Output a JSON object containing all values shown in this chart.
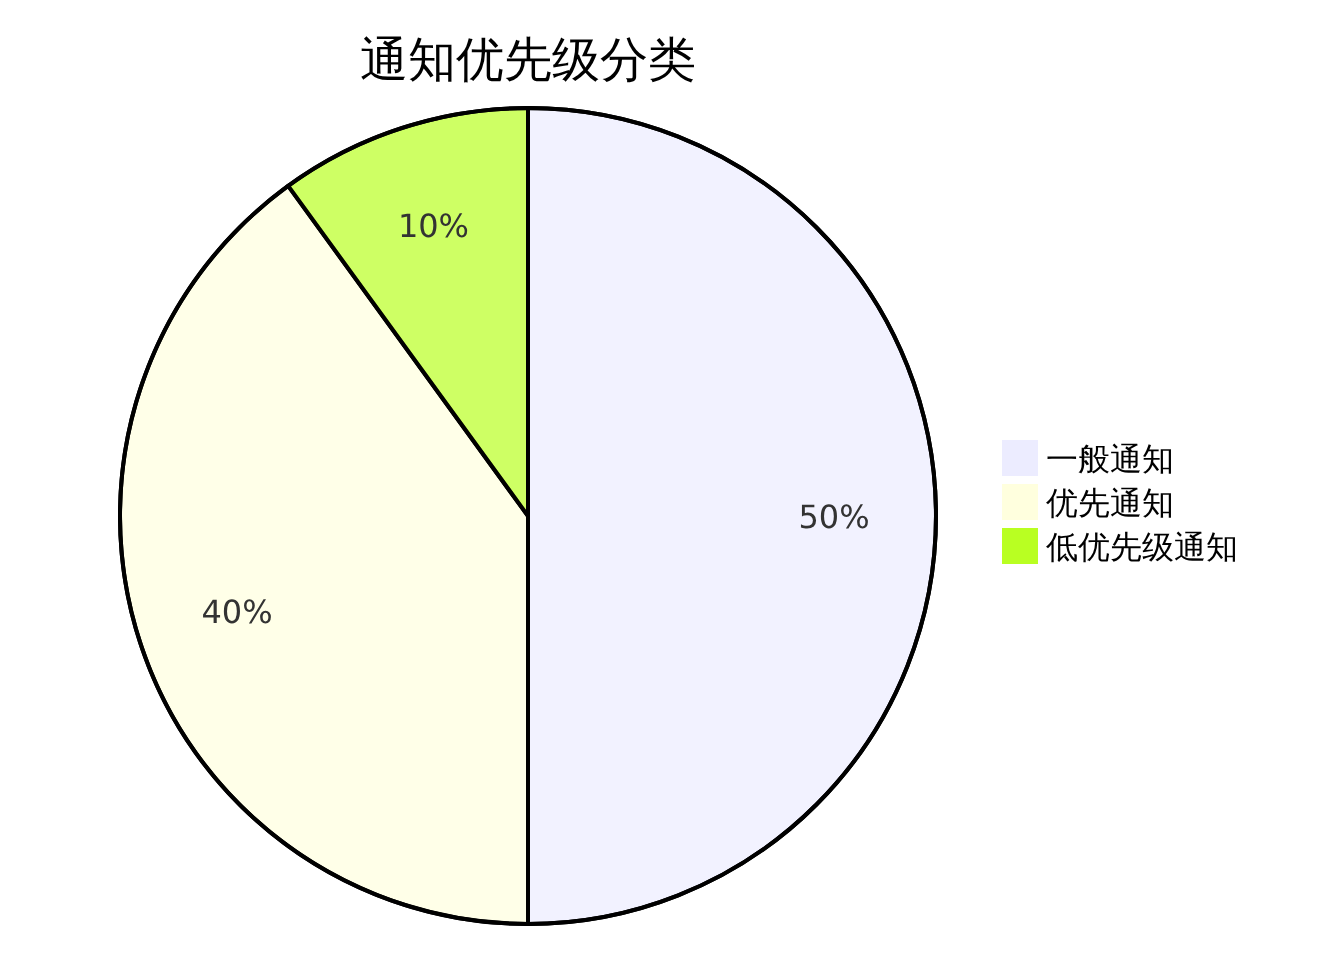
{
  "chart_data": {
    "type": "pie",
    "title": "通知优先级分类",
    "categories": [
      "一般通知",
      "优先通知",
      "低优先级通知"
    ],
    "values": [
      50,
      40,
      10
    ],
    "colors": [
      "#ececff",
      "#ffffde",
      "#b9ff22"
    ],
    "value_labels": [
      "50%",
      "40%",
      "10%"
    ],
    "legend": "right"
  }
}
